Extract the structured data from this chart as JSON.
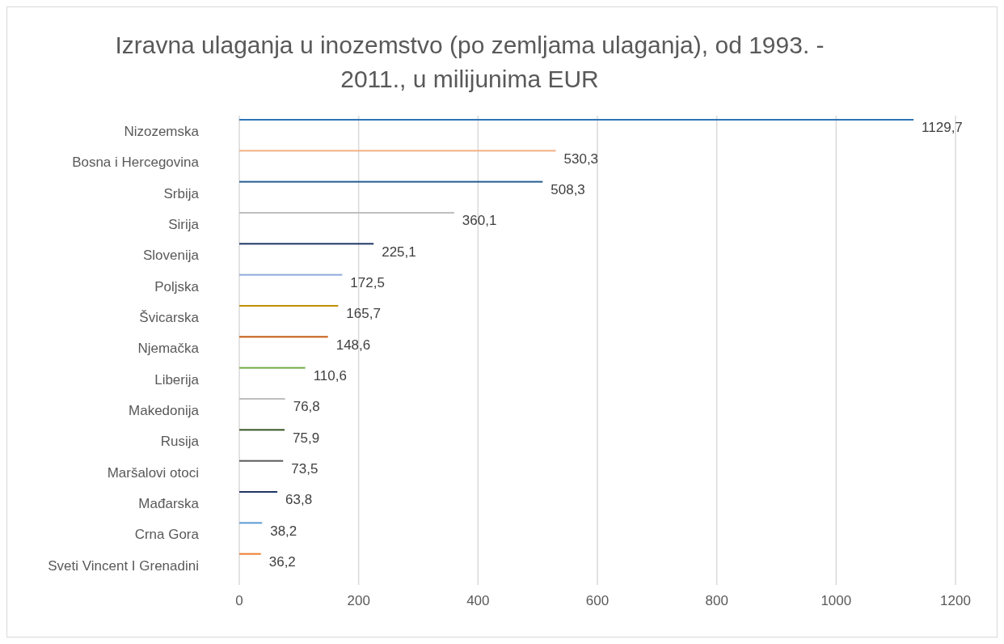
{
  "chart_data": {
    "type": "bar",
    "orientation": "horizontal",
    "title": "Izravna ulaganja u inozemstvo (po zemljama ulaganja), od 1993. - 2011., u milijunima EUR",
    "categories": [
      "Nizozemska",
      "Bosna i Hercegovina",
      "Srbija",
      "Sirija",
      "Slovenija",
      "Poljska",
      "Švicarska",
      "Njemačka",
      "Liberija",
      "Makedonija",
      "Rusija",
      "Maršalovi otoci",
      "Mađarska",
      "Crna Gora",
      "Sveti Vincent I Grenadini"
    ],
    "values": [
      1129.7,
      530.3,
      508.3,
      360.1,
      225.1,
      172.5,
      165.7,
      148.6,
      110.6,
      76.8,
      75.9,
      73.5,
      63.8,
      38.2,
      36.2
    ],
    "value_labels": [
      "1129,7",
      "530,3",
      "508,3",
      "360,1",
      "225,1",
      "172,5",
      "165,7",
      "148,6",
      "110,6",
      "76,8",
      "75,9",
      "73,5",
      "63,8",
      "38,2",
      "36,2"
    ],
    "colors": [
      "#2e75b6",
      "#f4b183",
      "#255e91",
      "#bfbfbf",
      "#1f3864",
      "#8faadc",
      "#bf9000",
      "#c55a11",
      "#70ad47",
      "#bfbfbf",
      "#375623",
      "#595959",
      "#203864",
      "#5b9bd5",
      "#ed7d31"
    ],
    "xlim": [
      0,
      1200
    ],
    "xticks": [
      0,
      200,
      400,
      600,
      800,
      1000,
      1200
    ],
    "grid": "x"
  }
}
